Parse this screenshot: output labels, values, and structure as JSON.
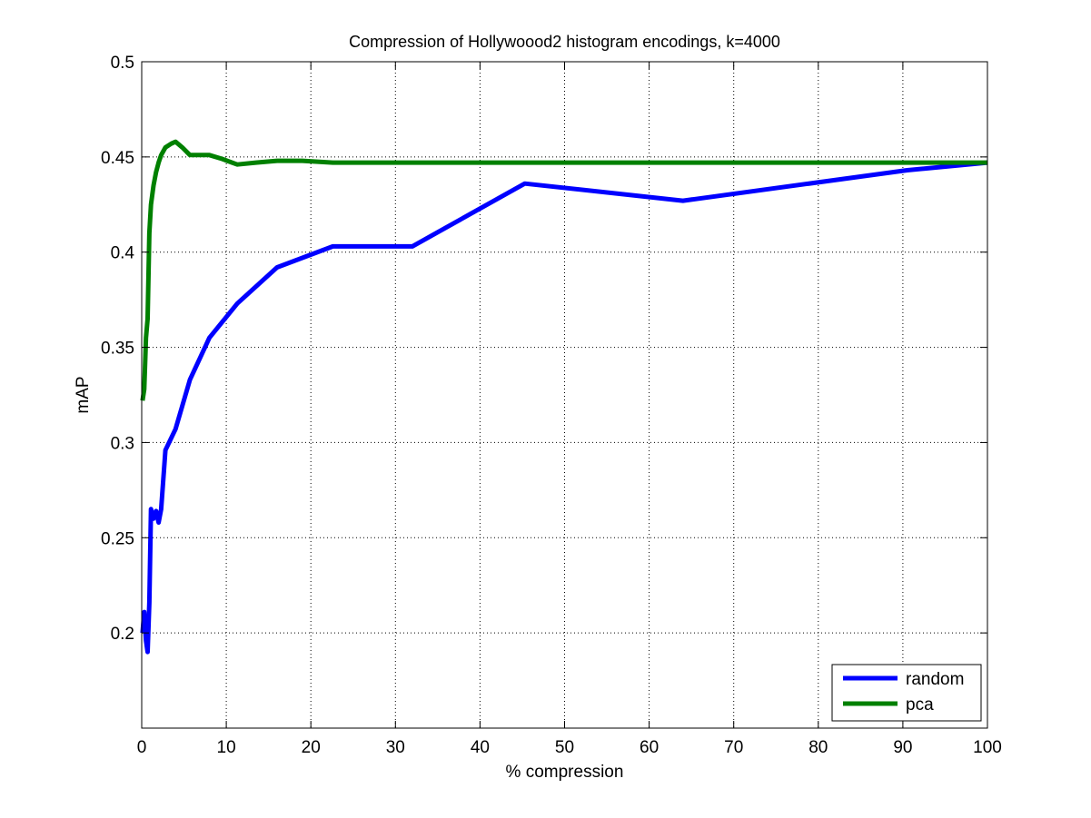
{
  "chart_data": {
    "type": "line",
    "title": "Compression of Hollywoood2 histogram encodings, k=4000",
    "xlabel": "% compression",
    "ylabel": "mAP",
    "xlim": [
      0,
      100
    ],
    "ylim": [
      0.15,
      0.5
    ],
    "xticks": [
      0,
      10,
      20,
      30,
      40,
      50,
      60,
      70,
      80,
      90,
      100
    ],
    "xtick_labels": [
      "0",
      "10",
      "20",
      "30",
      "40",
      "50",
      "60",
      "70",
      "80",
      "90",
      "100"
    ],
    "yticks": [
      0.2,
      0.25,
      0.3,
      0.35,
      0.4,
      0.45,
      0.5
    ],
    "ytick_labels": [
      "0.2",
      "0.25",
      "0.3",
      "0.35",
      "0.4",
      "0.45",
      "0.5"
    ],
    "grid": true,
    "legend_position": "bottom-right",
    "series": [
      {
        "name": "random",
        "color": "#0000ff",
        "x": [
          0.1,
          0.3,
          0.5,
          0.7,
          0.9,
          1.1,
          1.4,
          1.7,
          2.0,
          2.3,
          2.8,
          4.0,
          5.7,
          8.0,
          11.3,
          16.0,
          22.6,
          32.0,
          45.3,
          64.0,
          90.5,
          100
        ],
        "y": [
          0.2,
          0.211,
          0.196,
          0.19,
          0.216,
          0.265,
          0.26,
          0.264,
          0.258,
          0.265,
          0.296,
          0.307,
          0.333,
          0.355,
          0.373,
          0.392,
          0.403,
          0.403,
          0.436,
          0.427,
          0.443,
          0.447
        ]
      },
      {
        "name": "pca",
        "color": "#008000",
        "x": [
          0.1,
          0.3,
          0.5,
          0.7,
          0.9,
          1.1,
          1.4,
          1.7,
          2.0,
          2.3,
          2.8,
          3.5,
          4.0,
          4.8,
          5.7,
          6.7,
          8.0,
          9.5,
          11.3,
          13.5,
          16.0,
          19.0,
          22.6,
          26.9,
          32.0,
          45.3,
          64.0,
          90.5,
          100
        ],
        "y": [
          0.322,
          0.328,
          0.355,
          0.365,
          0.41,
          0.425,
          0.435,
          0.442,
          0.447,
          0.451,
          0.455,
          0.457,
          0.458,
          0.455,
          0.451,
          0.451,
          0.451,
          0.449,
          0.446,
          0.447,
          0.448,
          0.448,
          0.447,
          0.447,
          0.447,
          0.447,
          0.447,
          0.447,
          0.447
        ]
      }
    ]
  }
}
